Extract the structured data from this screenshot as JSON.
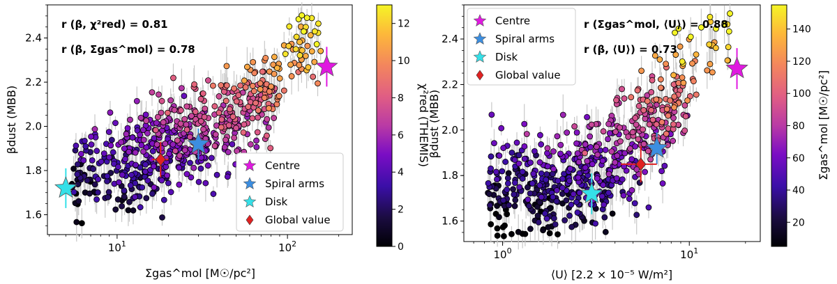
{
  "chart_data": [
    {
      "type": "scatter",
      "xlabel": "Σgas^mol [M☉/pc²]",
      "ylabel": "βdust (MBB)",
      "xscale": "log",
      "xlim": [
        3.9,
        240
      ],
      "ylim": [
        1.51,
        2.55
      ],
      "x_ticks": [
        {
          "value": 10,
          "label": "10^1"
        },
        {
          "value": 100,
          "label": "10^2"
        }
      ],
      "y_ticks": [
        1.6,
        1.8,
        2.0,
        2.2,
        2.4
      ],
      "colorbar": {
        "label": "χ²red (THEMIS)",
        "range": [
          0,
          13
        ],
        "ticks": [
          0,
          2,
          4,
          6,
          8,
          10,
          12
        ],
        "colormap": "plasma"
      },
      "annotations": [
        {
          "text": "r (β, χ²red) =  0.81"
        },
        {
          "text": "r (β, Σgas^mol) =  0.78"
        }
      ],
      "legend": {
        "placement": "lower-right",
        "entries": [
          {
            "label": "Centre",
            "marker": "star",
            "color": "#e019e0"
          },
          {
            "label": "Spiral arms",
            "marker": "star",
            "color": "#3c8ee0"
          },
          {
            "label": "Disk",
            "marker": "star",
            "color": "#35e0e8"
          },
          {
            "label": "Global value",
            "marker": "diamond",
            "color": "#e02222"
          }
        ]
      },
      "special_points": [
        {
          "label": "Centre",
          "x": 170,
          "y": 2.27,
          "yerr": 0.09,
          "marker": "star",
          "color": "#e019e0"
        },
        {
          "label": "Spiral arms",
          "x": 30,
          "y": 1.92,
          "yerr": 0.07,
          "marker": "star",
          "color": "#3c8ee0"
        },
        {
          "label": "Disk",
          "x": 5.0,
          "y": 1.72,
          "yerr": 0.09,
          "marker": "star",
          "color": "#35e0e8"
        },
        {
          "label": "Global value",
          "x": 18,
          "y": 1.85,
          "yerr": 0.08,
          "xerr": 2,
          "marker": "diamond",
          "color": "#e02222"
        }
      ],
      "trend": [
        [
          4.5,
          1.75
        ],
        [
          7,
          1.78
        ],
        [
          10,
          1.82
        ],
        [
          15,
          1.88
        ],
        [
          25,
          1.95
        ],
        [
          40,
          2.02
        ],
        [
          60,
          2.1
        ],
        [
          90,
          2.22
        ],
        [
          130,
          2.38
        ]
      ],
      "n_points": 620,
      "scatter_sigma": 0.11
    },
    {
      "type": "scatter",
      "xlabel": "⟨U⟩ [2.2 × 10⁻⁵ W/m²]",
      "ylabel": "βdust (MBB)",
      "xscale": "log",
      "xlim": [
        0.62,
        24
      ],
      "ylim": [
        1.51,
        2.55
      ],
      "x_ticks": [
        {
          "value": 1,
          "label": "10^0"
        },
        {
          "value": 10,
          "label": "10^1"
        }
      ],
      "y_ticks": [
        1.6,
        1.8,
        2.0,
        2.2,
        2.4
      ],
      "colorbar": {
        "label": "Σgas^mol [M☉/pc²]",
        "range": [
          5,
          155
        ],
        "ticks": [
          20,
          40,
          60,
          80,
          100,
          120,
          140
        ],
        "colormap": "plasma"
      },
      "annotations": [
        {
          "text": "r (Σgas^mol, ⟨U⟩) =  0.88"
        },
        {
          "text": "r (β, ⟨U⟩) =  0.73"
        }
      ],
      "legend": {
        "placement": "upper-left",
        "entries": [
          {
            "label": "Centre",
            "marker": "star",
            "color": "#e019e0"
          },
          {
            "label": "Spiral arms",
            "marker": "star",
            "color": "#3c8ee0"
          },
          {
            "label": "Disk",
            "marker": "star",
            "color": "#35e0e8"
          },
          {
            "label": "Global value",
            "marker": "diamond",
            "color": "#e02222"
          }
        ]
      },
      "special_points": [
        {
          "label": "Centre",
          "x": 18,
          "y": 2.27,
          "yerr": 0.09,
          "marker": "star",
          "color": "#e019e0"
        },
        {
          "label": "Spiral arms",
          "x": 6.7,
          "y": 1.92,
          "yerr": 0.07,
          "marker": "star",
          "color": "#3c8ee0"
        },
        {
          "label": "Disk",
          "x": 3.0,
          "y": 1.72,
          "yerr": 0.09,
          "marker": "star",
          "color": "#35e0e8"
        },
        {
          "label": "Global value",
          "x": 5.5,
          "y": 1.85,
          "yerr": 0.08,
          "xerr": 1.2,
          "marker": "diamond",
          "color": "#e02222"
        }
      ],
      "trend": [
        [
          0.75,
          1.7
        ],
        [
          1.5,
          1.75
        ],
        [
          3,
          1.8
        ],
        [
          5,
          1.93
        ],
        [
          7,
          2.05
        ],
        [
          10,
          2.2
        ],
        [
          13,
          2.35
        ],
        [
          17,
          2.5
        ]
      ],
      "n_points": 620,
      "scatter_sigma": 0.12
    }
  ]
}
